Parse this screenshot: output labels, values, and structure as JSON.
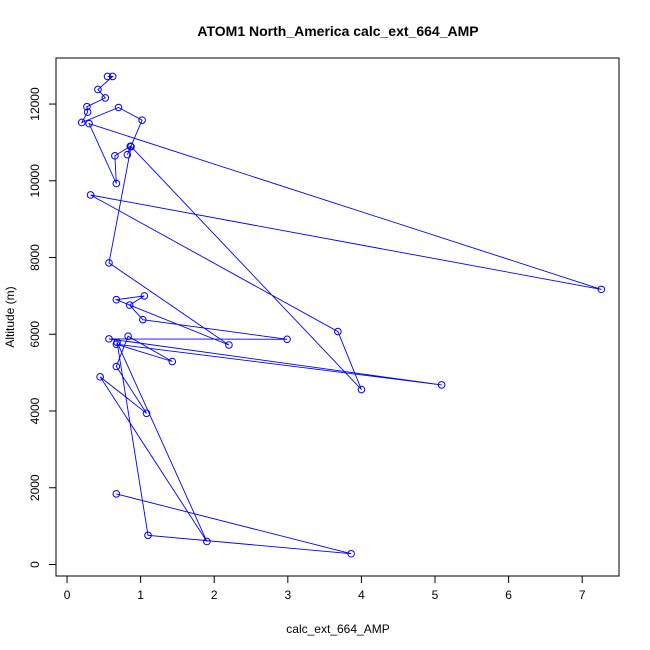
{
  "chart_data": {
    "type": "scatter",
    "title": "ATOM1 North_America calc_ext_664_AMP",
    "xlabel": "calc_ext_664_AMP",
    "ylabel": "Altitude (m)",
    "xlim": [
      -0.15,
      7.5
    ],
    "ylim": [
      -300,
      13200
    ],
    "x_ticks": [
      0,
      1,
      2,
      3,
      4,
      5,
      6,
      7
    ],
    "y_ticks": [
      0,
      2000,
      4000,
      6000,
      8000,
      10000,
      12000
    ],
    "x_tick_labels": [
      "0",
      "1",
      "2",
      "3",
      "4",
      "5",
      "6",
      "7"
    ],
    "y_tick_labels": [
      "0",
      "2000",
      "4000",
      "6000",
      "8000",
      "10000",
      "12000"
    ],
    "grid": false,
    "color": "#0000ff",
    "marker": "open-circle",
    "connected": true,
    "series": [
      {
        "x": [
          0.55,
          0.62,
          0.42,
          0.52,
          0.27,
          0.28,
          0.2,
          0.7,
          1.02,
          0.82,
          0.86,
          0.65,
          0.67,
          0.3,
          7.26,
          0.32,
          3.68,
          4.0,
          0.87,
          0.57,
          2.2,
          0.67,
          1.05,
          0.85,
          1.03,
          2.99,
          0.57,
          5.09,
          0.67,
          1.43,
          0.83,
          0.67,
          1.08,
          0.45,
          1.9,
          0.68,
          1.1,
          3.86,
          0.67
        ],
        "y": [
          12720,
          12720,
          12380,
          12160,
          11930,
          11790,
          11520,
          11910,
          11580,
          10680,
          10900,
          10650,
          9930,
          11490,
          7170,
          9630,
          6070,
          4560,
          10890,
          7860,
          5720,
          6900,
          7000,
          6760,
          6380,
          5870,
          5880,
          4680,
          5740,
          5290,
          5950,
          5160,
          3940,
          4890,
          600,
          5790,
          760,
          280,
          1840
        ]
      }
    ]
  }
}
